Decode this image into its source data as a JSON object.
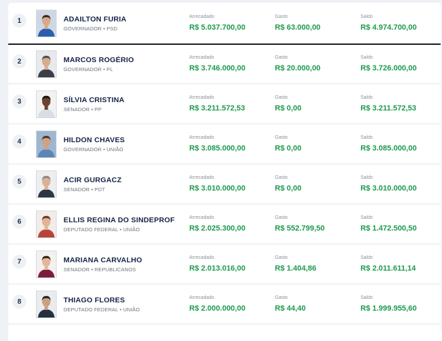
{
  "candidates": [
    {
      "rank": "1",
      "name": "ADAILTON FURIA",
      "role": "GOVERNADOR • PSD",
      "arrecadado_label": "Arrecadado",
      "arrecadado": "R$ 5.037.700,00",
      "gasto_label": "Gasto",
      "gasto": "R$ 63.000,00",
      "saldo_label": "Saldo",
      "saldo": "R$ 4.974.700,00",
      "photo": {
        "bg": "#cfd8e2",
        "shirt": "#2a5fae",
        "hair": "#3b2c22",
        "skin": "#d7a98a"
      }
    },
    {
      "rank": "2",
      "name": "MARCOS ROGÉRIO",
      "role": "GOVERNADOR • PL",
      "arrecadado_label": "Arrecadado",
      "arrecadado": "R$ 3.746.000,00",
      "gasto_label": "Gasto",
      "gasto": "R$ 20.000,00",
      "saldo_label": "Saldo",
      "saldo": "R$ 3.726.000,00",
      "photo": {
        "bg": "#e7e9ec",
        "shirt": "#3a3f4a",
        "hair": "#55504a",
        "skin": "#d9ab8c"
      }
    },
    {
      "rank": "3",
      "name": "SÍLVIA CRISTINA",
      "role": "SENADOR • PP",
      "arrecadado_label": "Arrecadado",
      "arrecadado": "R$ 3.211.572,53",
      "gasto_label": "Gasto",
      "gasto": "R$ 0,00",
      "saldo_label": "Saldo",
      "saldo": "R$ 3.211.572,53",
      "photo": {
        "bg": "#f2f2f2",
        "shirt": "#d9dde4",
        "hair": "#1a1411",
        "skin": "#6b4331"
      }
    },
    {
      "rank": "4",
      "name": "HILDON CHAVES",
      "role": "GOVERNADOR • UNIÃO",
      "arrecadado_label": "Arrecadado",
      "arrecadado": "R$ 3.085.000,00",
      "gasto_label": "Gasto",
      "gasto": "R$ 0,00",
      "saldo_label": "Saldo",
      "saldo": "R$ 3.085.000,00",
      "photo": {
        "bg": "#9fb6cf",
        "shirt": "#5c85b8",
        "hair": "#4a3b30",
        "skin": "#d2a084"
      }
    },
    {
      "rank": "5",
      "name": "ACIR GURGACZ",
      "role": "SENADOR • PDT",
      "arrecadado_label": "Arrecadado",
      "arrecadado": "R$ 3.010.000,00",
      "gasto_label": "Gasto",
      "gasto": "R$ 0,00",
      "saldo_label": "Saldo",
      "saldo": "R$ 3.010.000,00",
      "photo": {
        "bg": "#eceef0",
        "shirt": "#2d3645",
        "hair": "#8d8a86",
        "skin": "#dcb094"
      }
    },
    {
      "rank": "6",
      "name": "ELLIS REGINA DO SINDEPROF",
      "role": "DEPUTADO FEDERAL • UNIÃO",
      "arrecadado_label": "Arrecadado",
      "arrecadado": "R$ 2.025.300,00",
      "gasto_label": "Gasto",
      "gasto": "R$ 552.799,50",
      "saldo_label": "Saldo",
      "saldo": "R$ 1.472.500,50",
      "photo": {
        "bg": "#f1ece8",
        "shirt": "#b8433a",
        "hair": "#6a3a24",
        "skin": "#e0b497"
      }
    },
    {
      "rank": "7",
      "name": "MARIANA CARVALHO",
      "role": "SENADOR • REPUBLICANOS",
      "arrecadado_label": "Arrecadado",
      "arrecadado": "R$ 2.013.016,00",
      "gasto_label": "Gasto",
      "gasto": "R$ 1.404,86",
      "saldo_label": "Saldo",
      "saldo": "R$ 2.011.611,14",
      "photo": {
        "bg": "#f4f0ef",
        "shirt": "#7a1f3a",
        "hair": "#3a2418",
        "skin": "#e3b69a"
      }
    },
    {
      "rank": "8",
      "name": "THIAGO FLORES",
      "role": "DEPUTADO FEDERAL • UNIÃO",
      "arrecadado_label": "Arrecadado",
      "arrecadado": "R$ 2.000.000,00",
      "gasto_label": "Gasto",
      "gasto": "R$ 44,40",
      "saldo_label": "Saldo",
      "saldo": "R$ 1.999.955,60",
      "photo": {
        "bg": "#e9ecef",
        "shirt": "#26303f",
        "hair": "#2b221c",
        "skin": "#caa085"
      }
    }
  ]
}
